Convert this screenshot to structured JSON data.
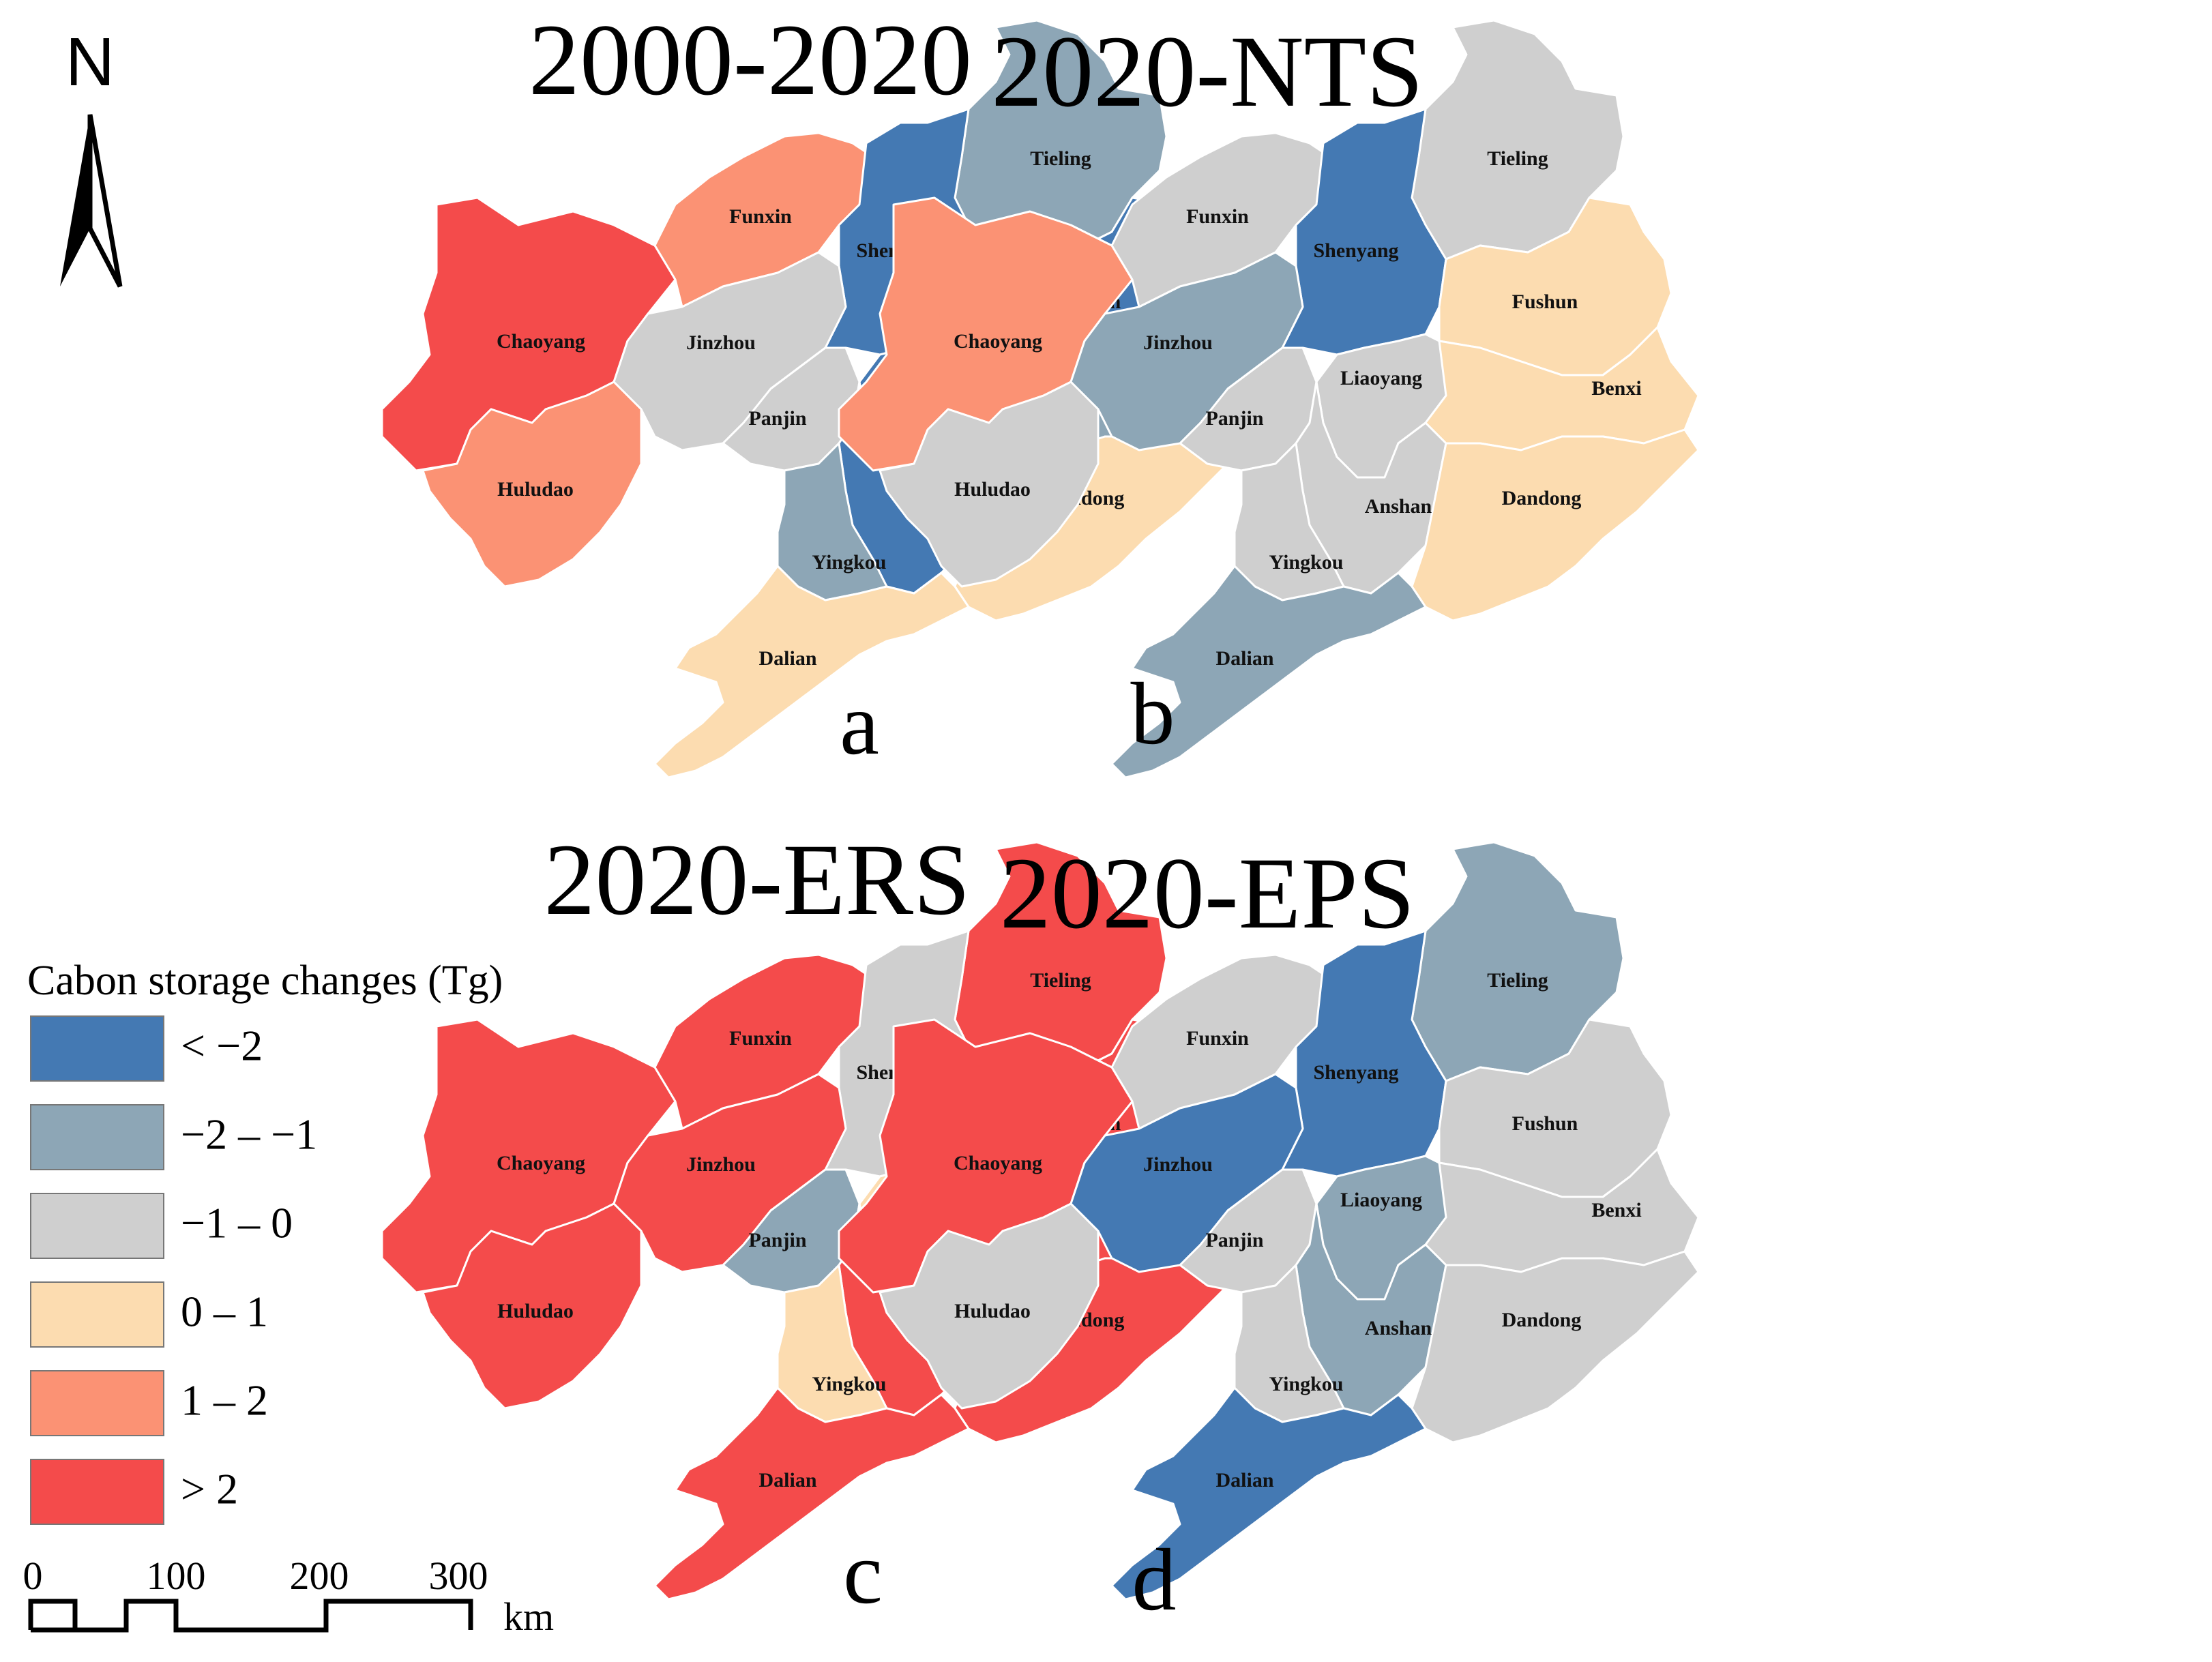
{
  "north_label": "N",
  "colors": {
    "lt_neg2": "#4479b3",
    "neg2_neg1": "#8da6b6",
    "neg1_0": "#cfcfcf",
    "0_1": "#fcdcb0",
    "1_2": "#fb9274",
    "gt_2": "#f44b4b"
  },
  "legend": {
    "title": "Cabon storage changes (Tg)",
    "items": [
      {
        "key": "lt_neg2",
        "label": "< −2"
      },
      {
        "key": "neg2_neg1",
        "label": "−2 – −1"
      },
      {
        "key": "neg1_0",
        "label": "−1 – 0"
      },
      {
        "key": "0_1",
        "label": "0 – 1"
      },
      {
        "key": "1_2",
        "label": "1 – 2"
      },
      {
        "key": "gt_2",
        "label": "> 2"
      }
    ]
  },
  "scalebar": {
    "ticks": [
      "0",
      "100",
      "200",
      "300"
    ],
    "unit": "km"
  },
  "cities": [
    "Tieling",
    "Funxin",
    "Shenyang",
    "Fushun",
    "Chaoyang",
    "Jinzhou",
    "Liaoyang",
    "Benxi",
    "Panjin",
    "Huludao",
    "Anshan",
    "Dandong",
    "Yingkou",
    "Dalian"
  ],
  "maps": [
    {
      "title": "2000-2020",
      "panel": "a",
      "classes": {
        "Tieling": "neg2_neg1",
        "Funxin": "1_2",
        "Shenyang": "lt_neg2",
        "Fushun": "lt_neg2",
        "Chaoyang": "gt_2",
        "Jinzhou": "neg1_0",
        "Liaoyang": "lt_neg2",
        "Benxi": "neg2_neg1",
        "Panjin": "neg1_0",
        "Huludao": "1_2",
        "Anshan": "lt_neg2",
        "Dandong": "0_1",
        "Yingkou": "neg2_neg1",
        "Dalian": "0_1"
      }
    },
    {
      "title": "2020-NTS",
      "panel": "b",
      "classes": {
        "Tieling": "neg1_0",
        "Funxin": "neg1_0",
        "Shenyang": "lt_neg2",
        "Fushun": "0_1",
        "Chaoyang": "1_2",
        "Jinzhou": "neg2_neg1",
        "Liaoyang": "neg1_0",
        "Benxi": "0_1",
        "Panjin": "neg1_0",
        "Huludao": "neg1_0",
        "Anshan": "neg1_0",
        "Dandong": "0_1",
        "Yingkou": "neg1_0",
        "Dalian": "neg2_neg1"
      }
    },
    {
      "title": "2020-ERS",
      "panel": "c",
      "classes": {
        "Tieling": "gt_2",
        "Funxin": "gt_2",
        "Shenyang": "neg1_0",
        "Fushun": "gt_2",
        "Chaoyang": "gt_2",
        "Jinzhou": "gt_2",
        "Liaoyang": "0_1",
        "Benxi": "gt_2",
        "Panjin": "neg2_neg1",
        "Huludao": "gt_2",
        "Anshan": "gt_2",
        "Dandong": "gt_2",
        "Yingkou": "0_1",
        "Dalian": "gt_2"
      }
    },
    {
      "title": "2020-EPS",
      "panel": "d",
      "classes": {
        "Tieling": "neg2_neg1",
        "Funxin": "neg1_0",
        "Shenyang": "lt_neg2",
        "Fushun": "neg1_0",
        "Chaoyang": "gt_2",
        "Jinzhou": "lt_neg2",
        "Liaoyang": "neg2_neg1",
        "Benxi": "neg1_0",
        "Panjin": "neg1_0",
        "Huludao": "neg1_0",
        "Anshan": "neg2_neg1",
        "Dandong": "neg1_0",
        "Yingkou": "neg1_0",
        "Dalian": "lt_neg2"
      }
    }
  ]
}
